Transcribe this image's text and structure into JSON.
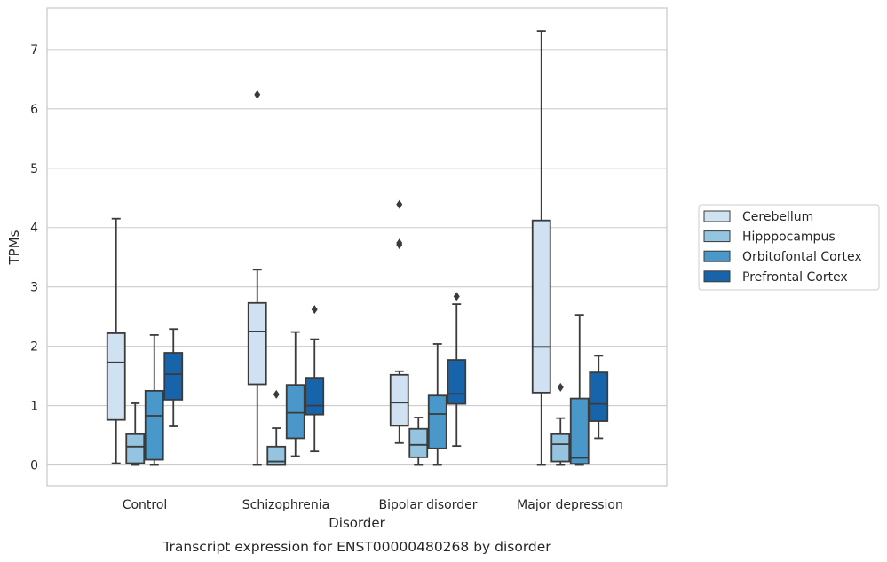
{
  "chart_data": {
    "type": "box",
    "xlabel": "Disorder",
    "ylabel": "TPMs",
    "caption": "Transcript expression for ENST00000480268 by disorder",
    "categories": [
      "Control",
      "Schizophrenia",
      "Bipolar disorder",
      "Major depression"
    ],
    "ylim": [
      -0.35,
      7.7
    ],
    "yticks": [
      "0",
      "1",
      "2",
      "3",
      "4",
      "5",
      "6",
      "7"
    ],
    "grid": true,
    "legend_position": "right",
    "series": [
      {
        "name": "Cerebellum",
        "color": "#d0e1f2",
        "boxes": [
          {
            "whislo": 0.03,
            "q1": 0.76,
            "med": 1.73,
            "q3": 2.22,
            "whishi": 4.15,
            "fliers": []
          },
          {
            "whislo": 0.0,
            "q1": 1.36,
            "med": 2.25,
            "q3": 2.73,
            "whishi": 3.29,
            "fliers": [
              6.24
            ]
          },
          {
            "whislo": 0.37,
            "q1": 0.66,
            "med": 1.05,
            "q3": 1.52,
            "whishi": 1.58,
            "fliers": [
              3.71,
              3.74,
              4.39
            ]
          },
          {
            "whislo": 0.0,
            "q1": 1.22,
            "med": 1.99,
            "q3": 4.12,
            "whishi": 7.31,
            "fliers": []
          }
        ]
      },
      {
        "name": "Hipppocampus",
        "color": "#94c4df",
        "boxes": [
          {
            "whislo": 0.0,
            "q1": 0.03,
            "med": 0.31,
            "q3": 0.52,
            "whishi": 1.04,
            "fliers": []
          },
          {
            "whislo": 0.0,
            "q1": 0.0,
            "med": 0.06,
            "q3": 0.31,
            "whishi": 0.62,
            "fliers": [
              1.19
            ]
          },
          {
            "whislo": 0.0,
            "q1": 0.13,
            "med": 0.34,
            "q3": 0.61,
            "whishi": 0.8,
            "fliers": []
          },
          {
            "whislo": 0.0,
            "q1": 0.06,
            "med": 0.35,
            "q3": 0.52,
            "whishi": 0.79,
            "fliers": [
              1.31
            ]
          }
        ]
      },
      {
        "name": "Orbitofontal Cortex",
        "color": "#4a98c9",
        "boxes": [
          {
            "whislo": 0.0,
            "q1": 0.09,
            "med": 0.83,
            "q3": 1.25,
            "whishi": 2.19,
            "fliers": []
          },
          {
            "whislo": 0.15,
            "q1": 0.45,
            "med": 0.88,
            "q3": 1.35,
            "whishi": 2.24,
            "fliers": []
          },
          {
            "whislo": 0.0,
            "q1": 0.28,
            "med": 0.86,
            "q3": 1.17,
            "whishi": 2.04,
            "fliers": []
          },
          {
            "whislo": 0.0,
            "q1": 0.02,
            "med": 0.12,
            "q3": 1.12,
            "whishi": 2.53,
            "fliers": []
          }
        ]
      },
      {
        "name": "Prefrontal Cortex",
        "color": "#1764ab",
        "boxes": [
          {
            "whislo": 0.65,
            "q1": 1.1,
            "med": 1.53,
            "q3": 1.89,
            "whishi": 2.29,
            "fliers": []
          },
          {
            "whislo": 0.23,
            "q1": 0.85,
            "med": 1.0,
            "q3": 1.47,
            "whishi": 2.12,
            "fliers": [
              2.62
            ]
          },
          {
            "whislo": 0.32,
            "q1": 1.03,
            "med": 1.2,
            "q3": 1.77,
            "whishi": 2.71,
            "fliers": [
              2.84
            ]
          },
          {
            "whislo": 0.45,
            "q1": 0.74,
            "med": 1.03,
            "q3": 1.56,
            "whishi": 1.84,
            "fliers": []
          }
        ]
      }
    ]
  }
}
